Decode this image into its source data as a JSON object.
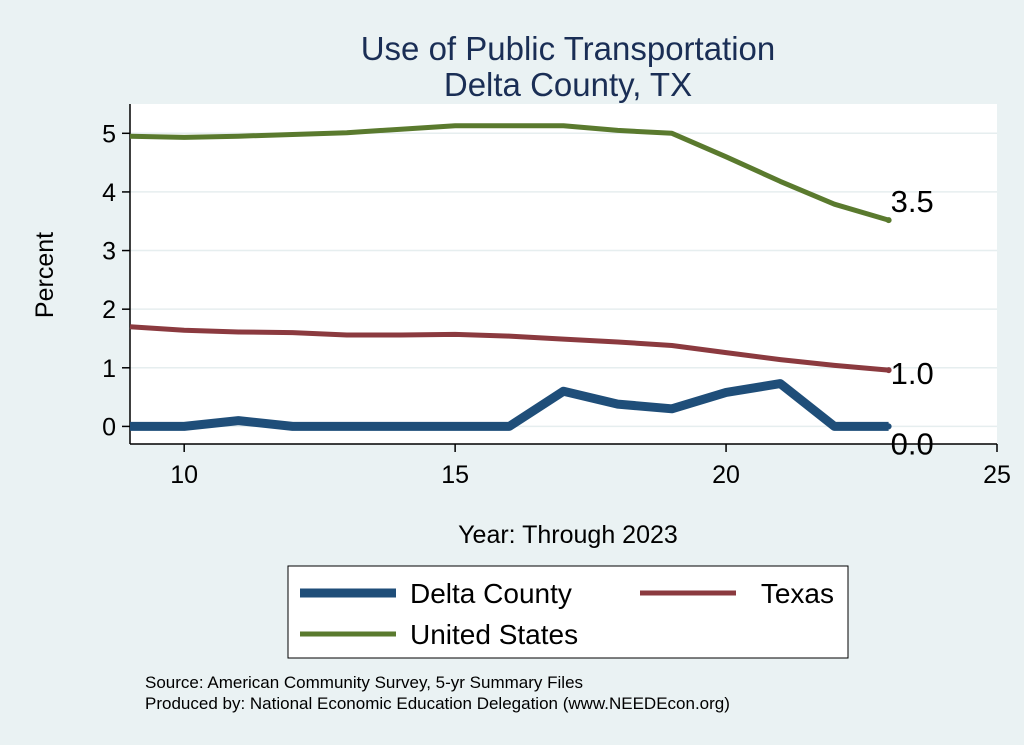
{
  "chart_data": {
    "type": "line",
    "title_lines": [
      "Use of Public Transportation",
      "Delta County, TX"
    ],
    "xlabel": "Year: Through 2023",
    "ylabel": "Percent",
    "xlim": [
      9,
      25
    ],
    "ylim": [
      -0.3,
      5.5
    ],
    "x_ticks": [
      10,
      15,
      20,
      25
    ],
    "y_ticks": [
      0,
      1,
      2,
      3,
      4,
      5
    ],
    "grid": "horizontal",
    "legend_position": "bottom",
    "x": [
      9,
      10,
      11,
      12,
      13,
      14,
      15,
      16,
      17,
      18,
      19,
      20,
      21,
      22,
      23
    ],
    "series": [
      {
        "name": "Delta County",
        "color": "#1f4e79",
        "values": [
          0.0,
          0.0,
          0.1,
          0.0,
          0.0,
          0.0,
          0.0,
          0.0,
          0.6,
          0.38,
          0.3,
          0.58,
          0.73,
          0.0,
          0.0
        ],
        "end_label": "0.0"
      },
      {
        "name": "Texas",
        "color": "#8b3a3f",
        "values": [
          1.7,
          1.64,
          1.61,
          1.6,
          1.56,
          1.56,
          1.57,
          1.54,
          1.49,
          1.44,
          1.38,
          1.26,
          1.14,
          1.04,
          0.96
        ],
        "end_label": "1.0"
      },
      {
        "name": "United States",
        "color": "#5a7a2e",
        "values": [
          4.95,
          4.93,
          4.95,
          4.98,
          5.01,
          5.07,
          5.13,
          5.13,
          5.13,
          5.05,
          5.0,
          4.6,
          4.18,
          3.79,
          3.52
        ],
        "end_label": "3.5"
      }
    ],
    "notes": [
      "Source: American Community Survey, 5-yr Summary Files",
      "Produced by: National Economic Education Delegation (www.NEEDEcon.org)"
    ]
  }
}
